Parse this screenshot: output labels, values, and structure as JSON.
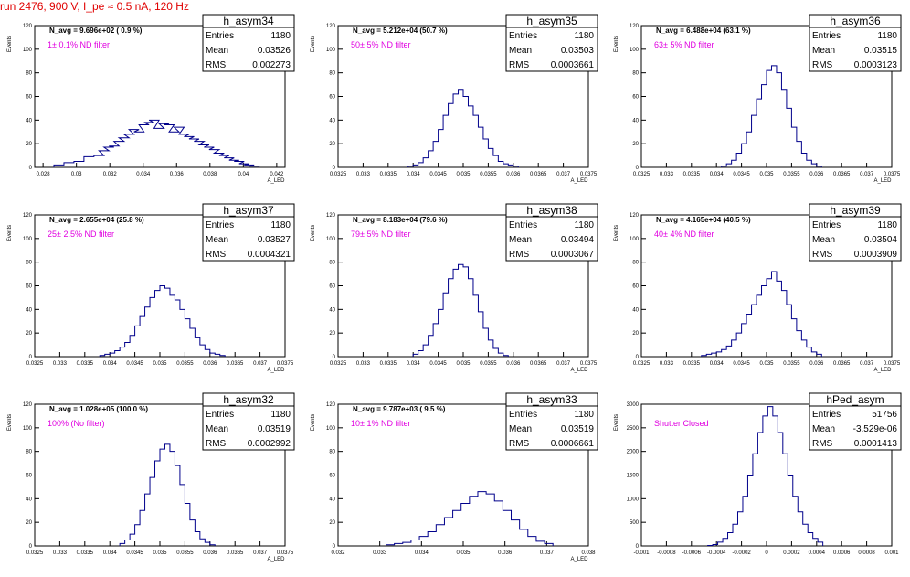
{
  "header": {
    "title": "run 2476,   900 V, I_pe ≈ 0.5 nA, 120 Hz"
  },
  "colors": {
    "histogram": "#00008b",
    "note": "#e000e0",
    "header": "#e00000"
  },
  "chart_data": [
    {
      "type": "histogram",
      "name": "h_asym34",
      "navg": "N_avg = 9.696e+02 ( 0.9 %)",
      "note": "1± 0.1% ND filter",
      "stats": {
        "entries": "1180",
        "mean": "0.03526",
        "rms": "0.002273"
      },
      "ylabel": "Events",
      "xlabel": "A_LED",
      "xlim": [
        0.0275,
        0.0425
      ],
      "ylim": [
        0,
        120
      ],
      "xticks": [
        0.028,
        0.03,
        0.032,
        0.034,
        0.036,
        0.038,
        0.04,
        0.042
      ],
      "xticklabels": [
        "0.028",
        "0.03",
        "0.032",
        "0.034",
        "0.036",
        "0.038",
        "0.04",
        "0.042"
      ],
      "yticks": [
        0,
        20,
        40,
        60,
        80,
        100,
        120
      ],
      "yticklabels": [
        "0",
        "20",
        "40",
        "60",
        "80",
        "100",
        "120"
      ],
      "centers": [
        0.02895,
        0.02955,
        0.03015,
        0.03075,
        0.03135,
        0.03165,
        0.03195,
        0.03225,
        0.03255,
        0.03285,
        0.03315,
        0.03345,
        0.03375,
        0.03405,
        0.03435,
        0.03465,
        0.03495,
        0.03525,
        0.03555,
        0.03585,
        0.03615,
        0.03645,
        0.03675,
        0.03705,
        0.03735,
        0.03765,
        0.03795,
        0.03825,
        0.03855,
        0.03885,
        0.03915,
        0.03945,
        0.03975,
        0.04005,
        0.04035,
        0.04065
      ],
      "counts": [
        2,
        4,
        5,
        9,
        10,
        14,
        17,
        18,
        22,
        25,
        28,
        32,
        30,
        36,
        38,
        40,
        33,
        37,
        36,
        30,
        34,
        28,
        26,
        24,
        22,
        19,
        17,
        15,
        12,
        10,
        8,
        6,
        5,
        3,
        2,
        1
      ]
    },
    {
      "type": "histogram",
      "name": "h_asym35",
      "navg": "N_avg = 5.212e+04 (50.7 %)",
      "note": "50± 5% ND filter",
      "stats": {
        "entries": "1180",
        "mean": "0.03503",
        "rms": "0.0003661"
      },
      "ylabel": "Events",
      "xlabel": "A_LED",
      "xlim": [
        0.0325,
        0.0375
      ],
      "ylim": [
        0,
        120
      ],
      "xticks": [
        0.0325,
        0.033,
        0.0335,
        0.034,
        0.0345,
        0.035,
        0.0355,
        0.036,
        0.0365,
        0.037,
        0.0375
      ],
      "xticklabels": [
        "0.0325",
        "0.033",
        "0.0335",
        "0.034",
        "0.0345",
        "0.035",
        "0.0355",
        "0.036",
        "0.0365",
        "0.037",
        "0.0375"
      ],
      "yticks": [
        0,
        20,
        40,
        60,
        80,
        100,
        120
      ],
      "yticklabels": [
        "0",
        "20",
        "40",
        "60",
        "80",
        "100",
        "120"
      ],
      "centers": [
        0.03395,
        0.03405,
        0.03415,
        0.03425,
        0.03435,
        0.03445,
        0.03455,
        0.03465,
        0.03475,
        0.03485,
        0.03495,
        0.03505,
        0.03515,
        0.03525,
        0.03535,
        0.03545,
        0.03555,
        0.03565,
        0.03575,
        0.03585,
        0.03595,
        0.03605
      ],
      "counts": [
        1,
        2,
        4,
        8,
        14,
        22,
        32,
        44,
        54,
        62,
        66,
        60,
        52,
        44,
        34,
        24,
        16,
        10,
        5,
        3,
        2,
        1
      ]
    },
    {
      "type": "histogram",
      "name": "h_asym36",
      "navg": "N_avg = 6.488e+04 (63.1 %)",
      "note": "63± 5% ND filter",
      "stats": {
        "entries": "1180",
        "mean": "0.03515",
        "rms": "0.0003123"
      },
      "ylabel": "Events",
      "xlabel": "A_LED",
      "xlim": [
        0.0325,
        0.0375
      ],
      "ylim": [
        0,
        120
      ],
      "xticks": [
        0.0325,
        0.033,
        0.0335,
        0.034,
        0.0345,
        0.035,
        0.0355,
        0.036,
        0.0365,
        0.037,
        0.0375
      ],
      "xticklabels": [
        "0.0325",
        "0.033",
        "0.0335",
        "0.034",
        "0.0345",
        "0.035",
        "0.0355",
        "0.036",
        "0.0365",
        "0.037",
        "0.0375"
      ],
      "yticks": [
        0,
        20,
        40,
        60,
        80,
        100,
        120
      ],
      "yticklabels": [
        "0",
        "20",
        "40",
        "60",
        "80",
        "100",
        "120"
      ],
      "centers": [
        0.03415,
        0.03425,
        0.03435,
        0.03445,
        0.03455,
        0.03465,
        0.03475,
        0.03485,
        0.03495,
        0.03505,
        0.03515,
        0.03525,
        0.03535,
        0.03545,
        0.03555,
        0.03565,
        0.03575,
        0.03585,
        0.03595,
        0.03605
      ],
      "counts": [
        1,
        3,
        6,
        12,
        20,
        30,
        44,
        58,
        70,
        82,
        86,
        80,
        66,
        50,
        34,
        22,
        12,
        6,
        3,
        1
      ]
    },
    {
      "type": "histogram",
      "name": "h_asym37",
      "navg": "N_avg = 2.655e+04 (25.8 %)",
      "note": "25± 2.5% ND filter",
      "stats": {
        "entries": "1180",
        "mean": "0.03527",
        "rms": "0.0004321"
      },
      "ylabel": "Events",
      "xlabel": "A_LED",
      "xlim": [
        0.0325,
        0.0375
      ],
      "ylim": [
        0,
        120
      ],
      "xticks": [
        0.0325,
        0.033,
        0.0335,
        0.034,
        0.0345,
        0.035,
        0.0355,
        0.036,
        0.0365,
        0.037,
        0.0375
      ],
      "xticklabels": [
        "0.0325",
        "0.033",
        "0.0335",
        "0.034",
        "0.0345",
        "0.035",
        "0.0355",
        "0.036",
        "0.0365",
        "0.037",
        "0.0375"
      ],
      "yticks": [
        0,
        20,
        40,
        60,
        80,
        100,
        120
      ],
      "yticklabels": [
        "0",
        "20",
        "40",
        "60",
        "80",
        "100",
        "120"
      ],
      "centers": [
        0.03385,
        0.03395,
        0.03405,
        0.03415,
        0.03425,
        0.03435,
        0.03445,
        0.03455,
        0.03465,
        0.03475,
        0.03485,
        0.03495,
        0.03505,
        0.03515,
        0.03525,
        0.03535,
        0.03545,
        0.03555,
        0.03565,
        0.03575,
        0.03585,
        0.03595,
        0.03605,
        0.03615,
        0.03625
      ],
      "counts": [
        1,
        2,
        3,
        5,
        8,
        12,
        18,
        26,
        34,
        42,
        50,
        56,
        60,
        58,
        52,
        48,
        40,
        32,
        24,
        16,
        10,
        6,
        3,
        2,
        1
      ]
    },
    {
      "type": "histogram",
      "name": "h_asym38",
      "navg": "N_avg = 8.183e+04 (79.6 %)",
      "note": "79± 5% ND filter",
      "stats": {
        "entries": "1180",
        "mean": "0.03494",
        "rms": "0.0003067"
      },
      "ylabel": "Events",
      "xlabel": "A_LED",
      "xlim": [
        0.0325,
        0.0375
      ],
      "ylim": [
        0,
        120
      ],
      "xticks": [
        0.0325,
        0.033,
        0.0335,
        0.034,
        0.0345,
        0.035,
        0.0355,
        0.036,
        0.0365,
        0.037,
        0.0375
      ],
      "xticklabels": [
        "0.0325",
        "0.033",
        "0.0335",
        "0.034",
        "0.0345",
        "0.035",
        "0.0355",
        "0.036",
        "0.0365",
        "0.037",
        "0.0375"
      ],
      "yticks": [
        0,
        20,
        40,
        60,
        80,
        100,
        120
      ],
      "yticklabels": [
        "0",
        "20",
        "40",
        "60",
        "80",
        "100",
        "120"
      ],
      "centers": [
        0.03405,
        0.03415,
        0.03425,
        0.03435,
        0.03445,
        0.03455,
        0.03465,
        0.03475,
        0.03485,
        0.03495,
        0.03505,
        0.03515,
        0.03525,
        0.03535,
        0.03545,
        0.03555,
        0.03565,
        0.03575,
        0.03585
      ],
      "counts": [
        2,
        5,
        10,
        18,
        28,
        40,
        54,
        66,
        74,
        78,
        76,
        66,
        52,
        38,
        24,
        14,
        7,
        3,
        1
      ]
    },
    {
      "type": "histogram",
      "name": "h_asym39",
      "navg": "N_avg = 4.165e+04 (40.5 %)",
      "note": "40± 4% ND filter",
      "stats": {
        "entries": "1180",
        "mean": "0.03504",
        "rms": "0.0003909"
      },
      "ylabel": "Events",
      "xlabel": "A_LED",
      "xlim": [
        0.0325,
        0.0375
      ],
      "ylim": [
        0,
        120
      ],
      "xticks": [
        0.0325,
        0.033,
        0.0335,
        0.034,
        0.0345,
        0.035,
        0.0355,
        0.036,
        0.0365,
        0.037,
        0.0375
      ],
      "xticklabels": [
        "0.0325",
        "0.033",
        "0.0335",
        "0.034",
        "0.0345",
        "0.035",
        "0.0355",
        "0.036",
        "0.0365",
        "0.037",
        "0.0375"
      ],
      "yticks": [
        0,
        20,
        40,
        60,
        80,
        100,
        120
      ],
      "yticklabels": [
        "0",
        "20",
        "40",
        "60",
        "80",
        "100",
        "120"
      ],
      "centers": [
        0.03375,
        0.03385,
        0.03395,
        0.03405,
        0.03415,
        0.03425,
        0.03435,
        0.03445,
        0.03455,
        0.03465,
        0.03475,
        0.03485,
        0.03495,
        0.03505,
        0.03515,
        0.03525,
        0.03535,
        0.03545,
        0.03555,
        0.03565,
        0.03575,
        0.03585,
        0.03595,
        0.03605
      ],
      "counts": [
        1,
        2,
        3,
        4,
        6,
        9,
        14,
        20,
        28,
        36,
        44,
        52,
        60,
        66,
        72,
        64,
        56,
        44,
        32,
        22,
        14,
        8,
        4,
        2
      ]
    },
    {
      "type": "histogram",
      "name": "h_asym32",
      "navg": "N_avg = 1.028e+05 (100.0 %)",
      "note": "100% (No filter)",
      "stats": {
        "entries": "1180",
        "mean": "0.03519",
        "rms": "0.0002992"
      },
      "ylabel": "Events",
      "xlabel": "A_LED",
      "xlim": [
        0.0325,
        0.0375
      ],
      "ylim": [
        0,
        120
      ],
      "xticks": [
        0.0325,
        0.033,
        0.0335,
        0.034,
        0.0345,
        0.035,
        0.0355,
        0.036,
        0.0365,
        0.037,
        0.0375
      ],
      "xticklabels": [
        "0.0325",
        "0.033",
        "0.0335",
        "0.034",
        "0.0345",
        "0.035",
        "0.0355",
        "0.036",
        "0.0365",
        "0.037",
        "0.0375"
      ],
      "yticks": [
        0,
        20,
        40,
        60,
        80,
        100,
        120
      ],
      "yticklabels": [
        "0",
        "20",
        "40",
        "60",
        "80",
        "100",
        "120"
      ],
      "centers": [
        0.03425,
        0.03435,
        0.03445,
        0.03455,
        0.03465,
        0.03475,
        0.03485,
        0.03495,
        0.03505,
        0.03515,
        0.03525,
        0.03535,
        0.03545,
        0.03555,
        0.03565,
        0.03575,
        0.03585,
        0.03595,
        0.03605
      ],
      "counts": [
        2,
        5,
        10,
        18,
        30,
        44,
        58,
        72,
        82,
        86,
        80,
        68,
        52,
        36,
        22,
        12,
        6,
        3,
        1
      ]
    },
    {
      "type": "histogram",
      "name": "h_asym33",
      "navg": "N_avg = 9.787e+03 ( 9.5 %)",
      "note": "10± 1% ND filter",
      "stats": {
        "entries": "1180",
        "mean": "0.03519",
        "rms": "0.0006661"
      },
      "ylabel": "Events",
      "xlabel": "A_LED",
      "xlim": [
        0.032,
        0.038
      ],
      "ylim": [
        0,
        120
      ],
      "xticks": [
        0.032,
        0.033,
        0.034,
        0.035,
        0.036,
        0.037,
        0.038
      ],
      "xticklabels": [
        "0.032",
        "0.033",
        "0.034",
        "0.035",
        "0.036",
        "0.037",
        "0.038"
      ],
      "yticks": [
        0,
        20,
        40,
        60,
        80,
        100,
        120
      ],
      "yticklabels": [
        "0",
        "20",
        "40",
        "60",
        "80",
        "100",
        "120"
      ],
      "centers": [
        0.03325,
        0.03345,
        0.03365,
        0.03385,
        0.03405,
        0.03425,
        0.03445,
        0.03465,
        0.03485,
        0.03505,
        0.03525,
        0.03545,
        0.03565,
        0.03585,
        0.03605,
        0.03625,
        0.03645,
        0.03665,
        0.03685,
        0.03705
      ],
      "counts": [
        1,
        2,
        3,
        5,
        8,
        12,
        18,
        24,
        30,
        36,
        42,
        46,
        44,
        38,
        30,
        22,
        14,
        8,
        4,
        2
      ]
    },
    {
      "type": "histogram",
      "name": "hPed_asym",
      "navg": "",
      "note": "Shutter Closed",
      "stats": {
        "entries": "51756",
        "mean": "-3.529e-06",
        "rms": "0.0001413"
      },
      "ylabel": "Events",
      "xlabel": "",
      "xlim": [
        -0.001,
        0.001
      ],
      "ylim": [
        0,
        3000
      ],
      "xticks": [
        -0.001,
        -0.0008,
        -0.0006,
        -0.0004,
        -0.0002,
        0,
        0.0002,
        0.0004,
        0.0006,
        0.0008,
        0.001
      ],
      "xticklabels": [
        "-0.001",
        "-0.0008",
        "-0.0006",
        "-0.0004",
        "-0.0002",
        "0",
        "0.0002",
        "0.0004",
        "0.0006",
        "0.0008",
        "0.001"
      ],
      "yticks": [
        0,
        500,
        1000,
        1500,
        2000,
        2500,
        3000
      ],
      "yticklabels": [
        "0",
        "500",
        "1000",
        "1500",
        "2000",
        "2500",
        "3000"
      ],
      "centers": [
        -0.00045,
        -0.00041,
        -0.00037,
        -0.00033,
        -0.00029,
        -0.00025,
        -0.00021,
        -0.00017,
        -0.00013,
        -9e-05,
        -5e-05,
        -1e-05,
        3e-05,
        7e-05,
        0.00011,
        0.00015,
        0.00019,
        0.00023,
        0.00027,
        0.00031,
        0.00035,
        0.00039,
        0.00043
      ],
      "counts": [
        10,
        30,
        80,
        160,
        280,
        460,
        720,
        1050,
        1480,
        1950,
        2400,
        2750,
        2950,
        2750,
        2400,
        1950,
        1480,
        1050,
        720,
        460,
        280,
        160,
        80
      ]
    }
  ]
}
